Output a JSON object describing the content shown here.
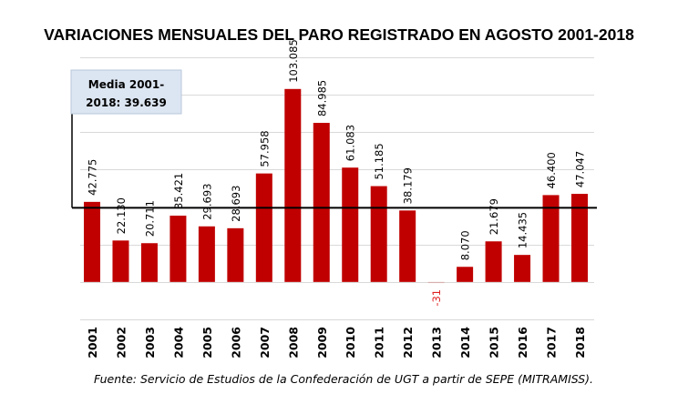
{
  "chart_data": {
    "type": "bar",
    "title": "VARIACIONES MENSUALES DEL PARO REGISTRADO EN AGOSTO 2001-2018",
    "xlabel": "",
    "ylabel": "",
    "categories": [
      "2001",
      "2002",
      "2003",
      "2004",
      "2005",
      "2006",
      "2007",
      "2008",
      "2009",
      "2010",
      "2011",
      "2012",
      "2013",
      "2014",
      "2015",
      "2016",
      "2017",
      "2018"
    ],
    "values": [
      42775,
      22130,
      20711,
      35421,
      29693,
      28693,
      57958,
      103085,
      84985,
      61083,
      51185,
      38179,
      -31,
      8070,
      21679,
      14435,
      46400,
      47047
    ],
    "labels": [
      "42.775",
      "22.130",
      "20.711",
      "35.421",
      "29.693",
      "28.693",
      "57.958",
      "103.085",
      "84.985",
      "61.083",
      "51.185",
      "38.179",
      "-31",
      "8.070",
      "21.679",
      "14.435",
      "46.400",
      "47.047"
    ],
    "ylim": [
      -20000,
      120000
    ],
    "ygrid_step": 20000,
    "grid": true,
    "mean": {
      "value": 39639,
      "label_line1": "Media 2001-",
      "label_line2": "2018: 39.639"
    },
    "source": "Fuente: Servicio de Estudios de la Confederación de UGT a partir de SEPE (MITRAMISS).",
    "colors": {
      "bar": "#c00000",
      "negative_label": "#e02020",
      "grid": "#d9d9d9",
      "mean_line": "#000000",
      "callout_fill": "#dce6f2",
      "callout_border": "#b8c7d9"
    }
  }
}
